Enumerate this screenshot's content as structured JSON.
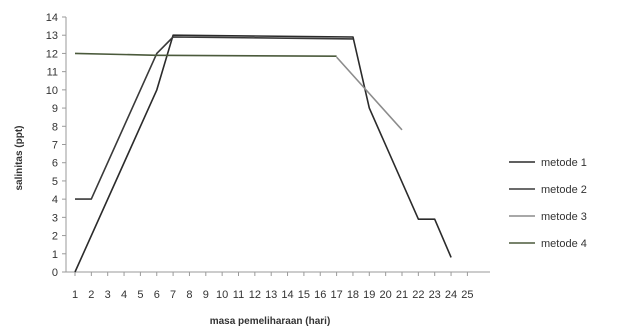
{
  "chart_data": {
    "type": "line",
    "title": "",
    "xlabel": "masa pemeliharaan (hari)",
    "ylabel": "salinitas (ppt)",
    "x": [
      1,
      2,
      3,
      4,
      5,
      6,
      7,
      8,
      9,
      10,
      11,
      12,
      13,
      14,
      15,
      16,
      17,
      18,
      19,
      20,
      21,
      22,
      23,
      24,
      25
    ],
    "ylim": [
      0,
      14
    ],
    "yticks": [
      0,
      1,
      2,
      3,
      4,
      5,
      6,
      7,
      8,
      9,
      10,
      11,
      12,
      13,
      14
    ],
    "grid": false,
    "legend_position": "right",
    "series": [
      {
        "name": "metode 1",
        "color": "#2b2b2b",
        "points": [
          [
            1,
            0
          ],
          [
            6,
            10
          ],
          [
            7,
            13
          ],
          [
            18,
            12.9
          ],
          [
            19,
            9
          ],
          [
            22,
            2.9
          ],
          [
            23,
            2.9
          ],
          [
            24,
            0.8
          ]
        ]
      },
      {
        "name": "metode 2",
        "color": "#3a3a3a",
        "points": [
          [
            1,
            4
          ],
          [
            2,
            4
          ],
          [
            6,
            12
          ],
          [
            7,
            12.9
          ],
          [
            18,
            12.8
          ]
        ]
      },
      {
        "name": "metode 3",
        "color": "#8c8c8c",
        "points": [
          [
            17,
            11.8
          ],
          [
            18.5,
            10.3
          ],
          [
            21,
            7.8
          ]
        ]
      },
      {
        "name": "metode 4",
        "color": "#4b5a3c",
        "points": [
          [
            1,
            12
          ],
          [
            6,
            11.9
          ],
          [
            17,
            11.85
          ]
        ]
      }
    ]
  }
}
